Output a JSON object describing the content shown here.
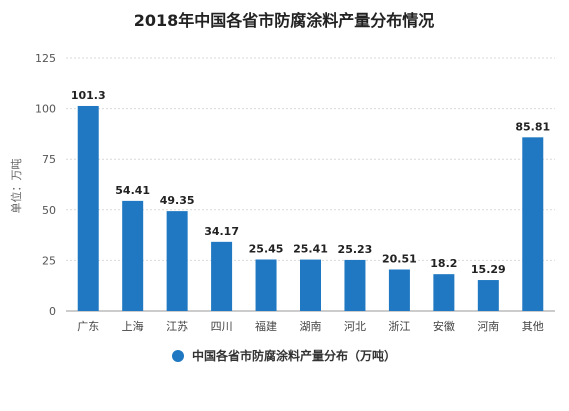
{
  "chart_data": {
    "type": "bar",
    "title": "2018年中国各省市防腐涂料产量分布情况",
    "ylabel": "单位：万吨",
    "xlabel": "",
    "ylim": [
      0,
      125
    ],
    "yticks": [
      0,
      25,
      50,
      75,
      100,
      125
    ],
    "grid": true,
    "legend_position": "bottom",
    "categories": [
      "广东",
      "上海",
      "江苏",
      "四川",
      "福建",
      "湖南",
      "河北",
      "浙江",
      "安徽",
      "河南",
      "其他"
    ],
    "series": [
      {
        "name": "中国各省市防腐涂料产量分布（万吨）",
        "color": "#1f78c1",
        "values": [
          101.3,
          54.41,
          49.35,
          34.17,
          25.45,
          25.41,
          25.23,
          20.51,
          18.2,
          15.29,
          85.81
        ]
      }
    ],
    "value_labels": [
      "101.3",
      "54.41",
      "49.35",
      "34.17",
      "25.45",
      "25.41",
      "25.23",
      "20.51",
      "18.2",
      "15.29",
      "85.81"
    ]
  }
}
